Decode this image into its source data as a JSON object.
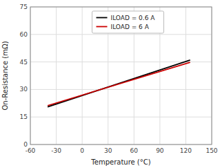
{
  "chart_data": {
    "type": "line",
    "title": "",
    "xlabel": "Temperature (°C)",
    "ylabel": "On-Resistance (mΩ)",
    "x": [
      -40,
      125
    ],
    "series": [
      {
        "name": "ILOAD = 0.6 A",
        "color": "#000000",
        "values": [
          20.5,
          46.0
        ]
      },
      {
        "name": "ILOAD = 6 A",
        "color": "#cc0000",
        "values": [
          21.2,
          44.8
        ]
      }
    ],
    "xlim": [
      -60,
      150
    ],
    "ylim": [
      0,
      75
    ],
    "xticks": [
      -60,
      -30,
      0,
      30,
      60,
      90,
      120,
      150
    ],
    "yticks": [
      0,
      15,
      30,
      45,
      60,
      75
    ],
    "grid": true,
    "legend": "top"
  }
}
